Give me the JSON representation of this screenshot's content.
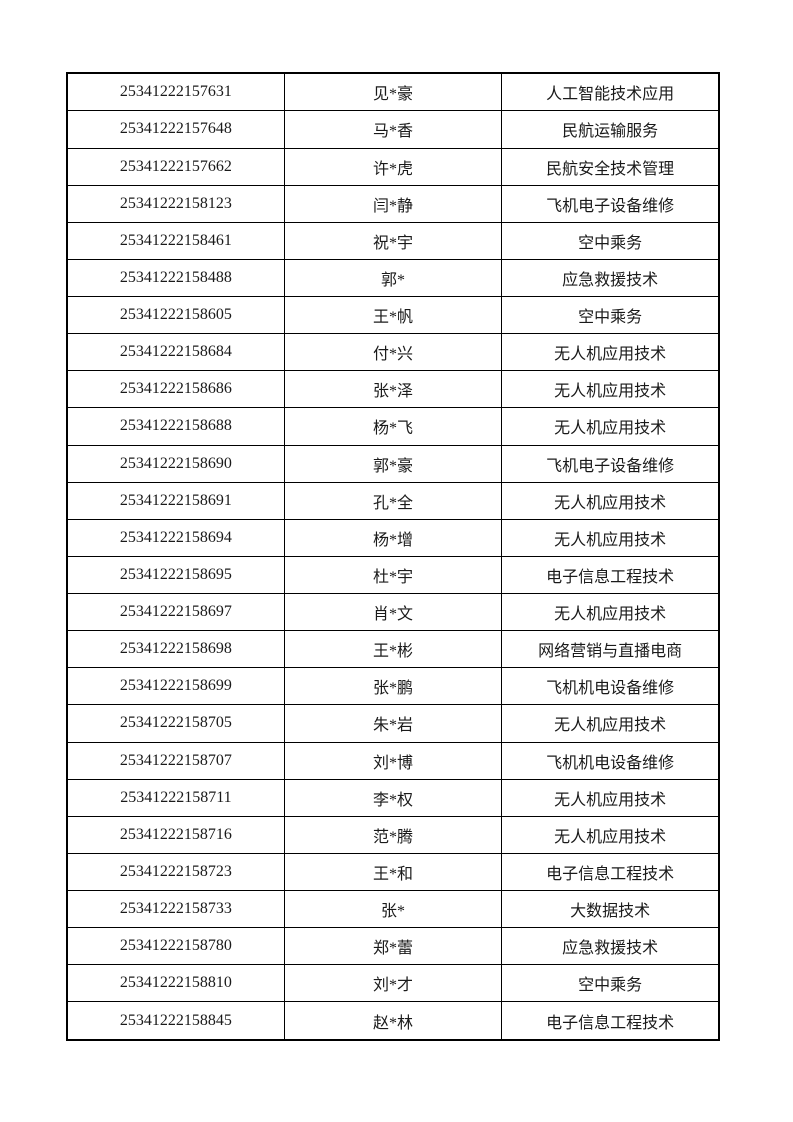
{
  "table": {
    "rows": [
      [
        "25341222157631",
        "见*豪",
        "人工智能技术应用"
      ],
      [
        "25341222157648",
        "马*香",
        "民航运输服务"
      ],
      [
        "25341222157662",
        "许*虎",
        "民航安全技术管理"
      ],
      [
        "25341222158123",
        "闫*静",
        "飞机电子设备维修"
      ],
      [
        "25341222158461",
        "祝*宇",
        "空中乘务"
      ],
      [
        "25341222158488",
        "郭*",
        "应急救援技术"
      ],
      [
        "25341222158605",
        "王*帆",
        "空中乘务"
      ],
      [
        "25341222158684",
        "付*兴",
        "无人机应用技术"
      ],
      [
        "25341222158686",
        "张*泽",
        "无人机应用技术"
      ],
      [
        "25341222158688",
        "杨*飞",
        "无人机应用技术"
      ],
      [
        "25341222158690",
        "郭*豪",
        "飞机电子设备维修"
      ],
      [
        "25341222158691",
        "孔*全",
        "无人机应用技术"
      ],
      [
        "25341222158694",
        "杨*增",
        "无人机应用技术"
      ],
      [
        "25341222158695",
        "杜*宇",
        "电子信息工程技术"
      ],
      [
        "25341222158697",
        "肖*文",
        "无人机应用技术"
      ],
      [
        "25341222158698",
        "王*彬",
        "网络营销与直播电商"
      ],
      [
        "25341222158699",
        "张*鹏",
        "飞机机电设备维修"
      ],
      [
        "25341222158705",
        "朱*岩",
        "无人机应用技术"
      ],
      [
        "25341222158707",
        "刘*博",
        "飞机机电设备维修"
      ],
      [
        "25341222158711",
        "李*权",
        "无人机应用技术"
      ],
      [
        "25341222158716",
        "范*腾",
        "无人机应用技术"
      ],
      [
        "25341222158723",
        "王*和",
        "电子信息工程技术"
      ],
      [
        "25341222158733",
        "张*",
        "大数据技术"
      ],
      [
        "25341222158780",
        "郑*蕾",
        "应急救援技术"
      ],
      [
        "25341222158810",
        "刘*才",
        "空中乘务"
      ],
      [
        "25341222158845",
        "赵*林",
        "电子信息工程技术"
      ]
    ],
    "colors": {
      "border": "#000000",
      "text": "#1a1a1a",
      "page_background": "#ffffff"
    }
  }
}
